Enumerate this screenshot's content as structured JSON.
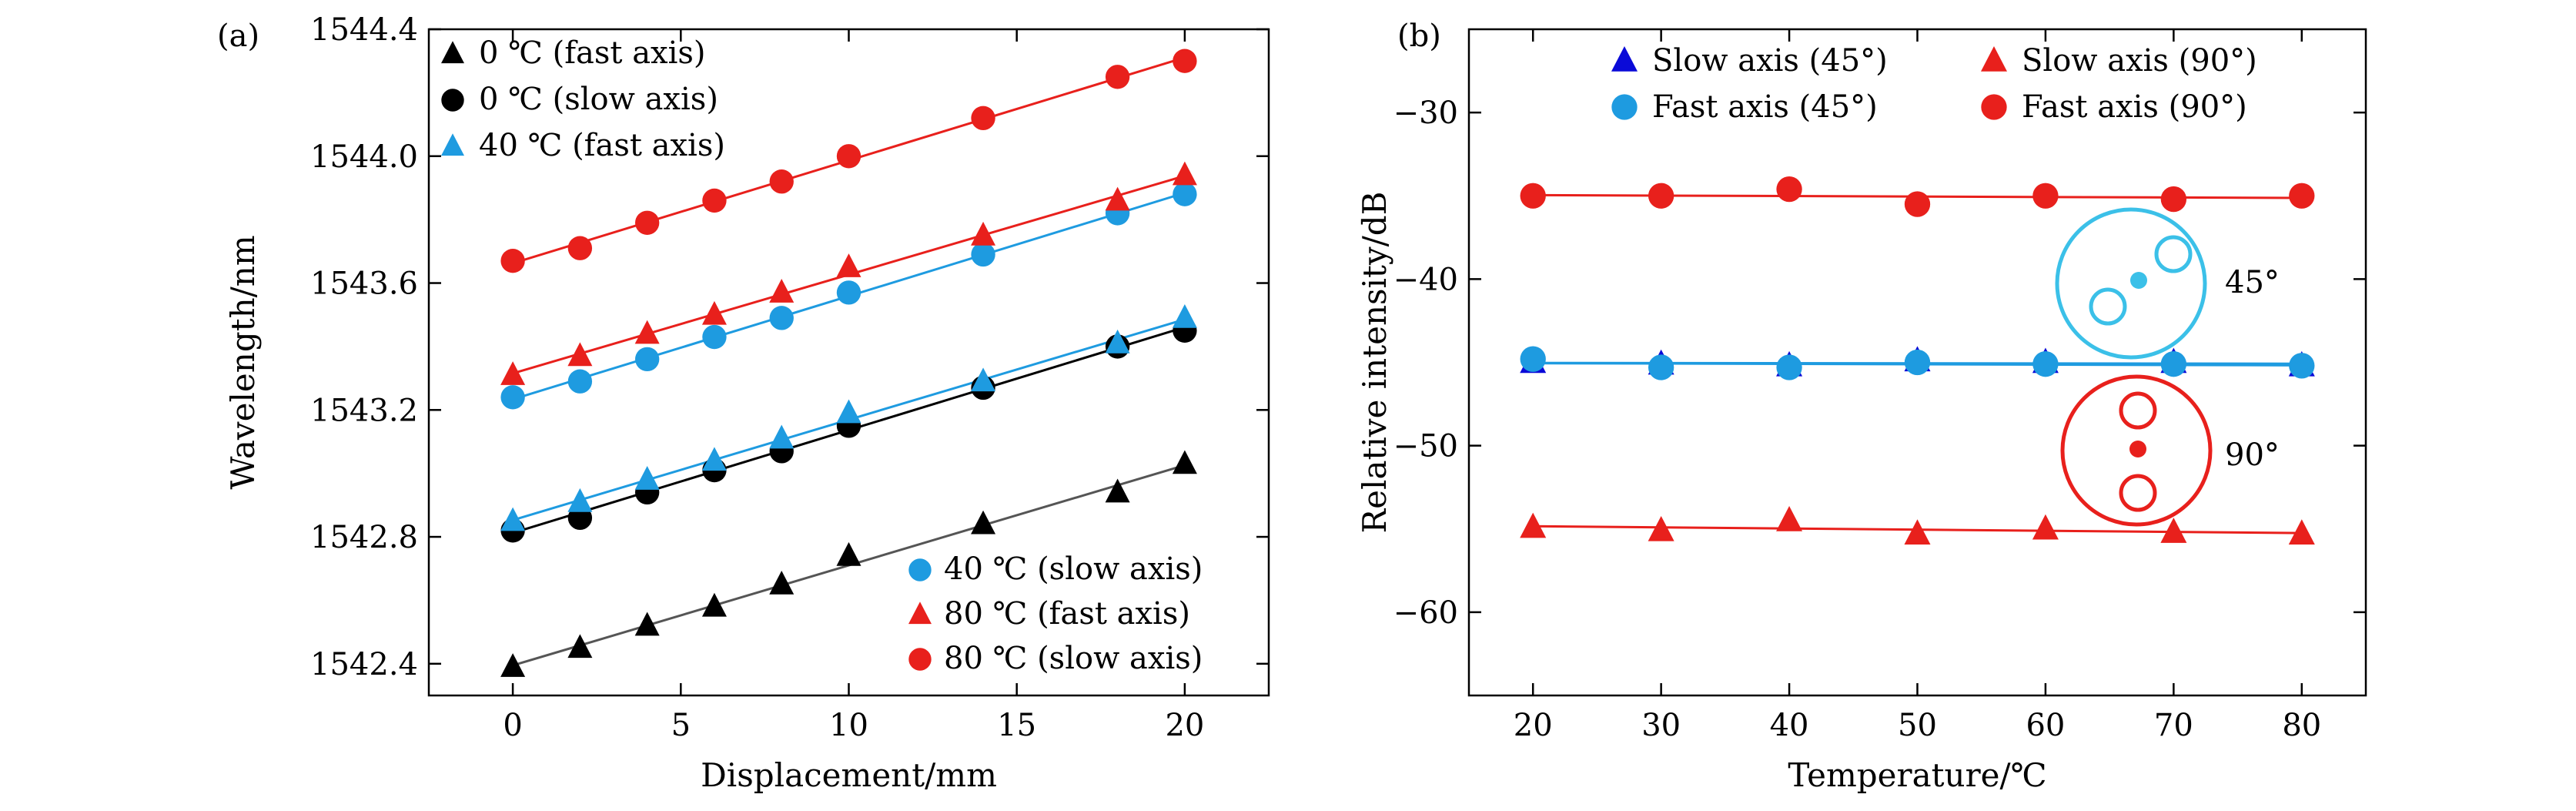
{
  "chart_data": [
    {
      "type": "scatter",
      "panel_label": "(a)",
      "xlabel": "Displacement/mm",
      "ylabel": "Wavelength/nm",
      "xlim": [
        -2.5,
        22.5
      ],
      "ylim": [
        1542.3,
        1544.4
      ],
      "xticks": [
        0,
        5,
        10,
        15,
        20
      ],
      "xtick_labels": [
        "0",
        "5",
        "10",
        "15",
        "20"
      ],
      "yticks": [
        1542.4,
        1542.8,
        1543.2,
        1543.6,
        1544.0,
        1544.4
      ],
      "ytick_labels": [
        "1542.4",
        "1542.8",
        "1543.2",
        "1543.6",
        "1544.0",
        "1544.4"
      ],
      "fit_lines": true,
      "legend_top_left": [
        "0 ℃ (fast axis)",
        "0 ℃ (slow axis)",
        "40 ℃ (fast axis)"
      ],
      "legend_bottom_right": [
        "40 ℃ (slow axis)",
        "80 ℃ (fast axis)",
        "80 ℃ (slow axis)"
      ],
      "x": [
        0,
        2,
        4,
        6,
        8,
        10,
        14,
        18,
        20
      ],
      "series": [
        {
          "name": "0 ℃ (fast axis)",
          "marker": "triangle",
          "color": "#000000",
          "line_color": "#555555",
          "values": [
            1542.39,
            1542.45,
            1542.52,
            1542.58,
            1542.65,
            1542.74,
            1542.84,
            1542.94,
            1543.03
          ]
        },
        {
          "name": "0 ℃ (slow axis)",
          "marker": "circle",
          "color": "#000000",
          "line_color": "#000000",
          "values": [
            1542.82,
            1542.86,
            1542.94,
            1543.01,
            1543.07,
            1543.15,
            1543.27,
            1543.4,
            1543.45
          ]
        },
        {
          "name": "40 ℃ (fast axis)",
          "marker": "triangle",
          "color": "#1e9be0",
          "line_color": "#1e9be0",
          "values": [
            1542.85,
            1542.91,
            1542.98,
            1543.04,
            1543.11,
            1543.19,
            1543.29,
            1543.41,
            1543.49
          ]
        },
        {
          "name": "40 ℃ (slow axis)",
          "marker": "circle",
          "color": "#1e9be0",
          "line_color": "#1e9be0",
          "values": [
            1543.24,
            1543.29,
            1543.36,
            1543.43,
            1543.49,
            1543.57,
            1543.69,
            1543.82,
            1543.88
          ]
        },
        {
          "name": "80 ℃ (fast axis)",
          "marker": "triangle",
          "color": "#e8201c",
          "line_color": "#e8201c",
          "values": [
            1543.31,
            1543.37,
            1543.44,
            1543.5,
            1543.57,
            1543.65,
            1543.75,
            1543.86,
            1543.94
          ]
        },
        {
          "name": "80 ℃ (slow axis)",
          "marker": "circle",
          "color": "#e8201c",
          "line_color": "#e8201c",
          "values": [
            1543.67,
            1543.71,
            1543.79,
            1543.86,
            1543.92,
            1544.0,
            1544.12,
            1544.25,
            1544.3
          ]
        }
      ]
    },
    {
      "type": "scatter",
      "panel_label": "(b)",
      "xlabel": "Temperature/℃",
      "ylabel": "Relative intensity/dB",
      "xlim": [
        15,
        85
      ],
      "ylim": [
        -65,
        -25
      ],
      "xticks": [
        20,
        30,
        40,
        50,
        60,
        70,
        80
      ],
      "xtick_labels": [
        "20",
        "30",
        "40",
        "50",
        "60",
        "70",
        "80"
      ],
      "yticks": [
        -60,
        -50,
        -40,
        -30
      ],
      "ytick_labels": [
        "−60",
        "−50",
        "−40",
        "−30"
      ],
      "fit_lines": true,
      "legend": [
        "Slow axis (45°)",
        "Slow axis (90°)",
        "Fast axis (45°)",
        "Fast axis (90°)"
      ],
      "x": [
        20,
        30,
        40,
        50,
        60,
        70,
        80
      ],
      "series": [
        {
          "name": "Slow axis (45°)",
          "marker": "triangle",
          "color": "#0a0ad8",
          "line_color": "#1e9be0",
          "values": [
            -45.0,
            -45.1,
            -45.2,
            -44.9,
            -45.0,
            -45.0,
            -45.2
          ]
        },
        {
          "name": "Slow axis (90°)",
          "marker": "triangle",
          "color": "#e8201c",
          "line_color": "#e8201c",
          "values": [
            -54.9,
            -55.1,
            -54.5,
            -55.3,
            -55.0,
            -55.2,
            -55.3
          ]
        },
        {
          "name": "Fast axis (45°)",
          "marker": "circle",
          "color": "#1e9be0",
          "line_color": "#1e9be0",
          "values": [
            -44.8,
            -45.3,
            -45.3,
            -45.0,
            -45.1,
            -45.1,
            -45.2
          ]
        },
        {
          "name": "Fast axis (90°)",
          "marker": "circle",
          "color": "#e8201c",
          "line_color": "#e8201c",
          "values": [
            -35.0,
            -35.0,
            -34.6,
            -35.5,
            -35.0,
            -35.2,
            -35.0
          ]
        }
      ],
      "insets": [
        {
          "label": "45°",
          "color": "#3bc0e8"
        },
        {
          "label": "90°",
          "color": "#e8201c"
        }
      ]
    }
  ]
}
